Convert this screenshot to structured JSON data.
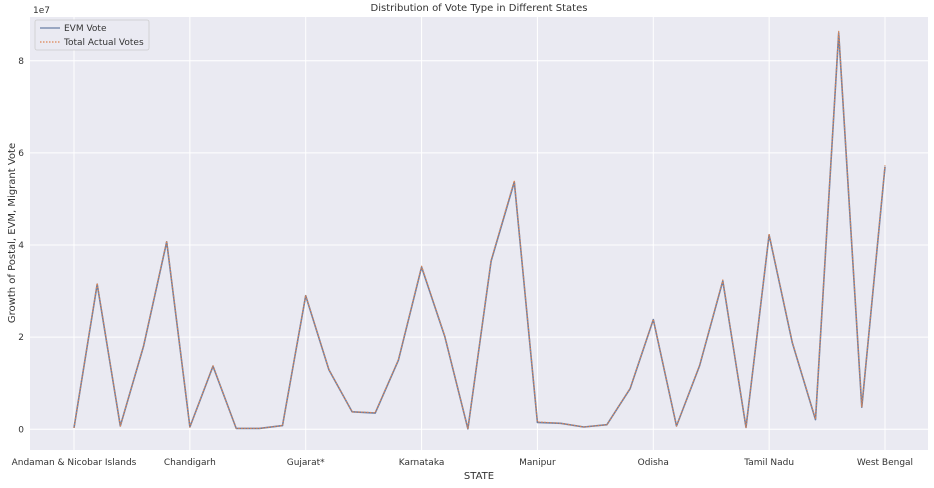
{
  "chart_data": {
    "type": "line",
    "title": "Distribution of Vote Type in Different States",
    "xlabel": "STATE",
    "ylabel": "Growth of Postal, EVM, Migrant Vote",
    "y_scale_label": "1e7",
    "ylim": [
      -0.45,
      8.95
    ],
    "grid": true,
    "legend_placement": "top-left",
    "background_color": "#eaeaf2",
    "grid_color": "#ffffff",
    "x_tick_labels": [
      {
        "index": 0,
        "label": "Andaman & Nicobar Islands"
      },
      {
        "index": 5,
        "label": "Chandigarh"
      },
      {
        "index": 10,
        "label": "Gujarat*"
      },
      {
        "index": 15,
        "label": "Karnataka"
      },
      {
        "index": 20,
        "label": "Manipur"
      },
      {
        "index": 25,
        "label": "Odisha"
      },
      {
        "index": 30,
        "label": "Tamil Nadu"
      },
      {
        "index": 35,
        "label": "West Bengal"
      }
    ],
    "y_ticks": [
      0,
      2,
      4,
      6,
      8
    ],
    "series": [
      {
        "name": "EVM Vote",
        "color": "#6a7fa6",
        "values": [
          0.03,
          3.15,
          0.07,
          1.8,
          4.07,
          0.05,
          1.37,
          0.02,
          0.02,
          0.08,
          2.9,
          1.29,
          0.38,
          0.35,
          1.5,
          3.52,
          2.02,
          0.01,
          3.65,
          5.37,
          0.15,
          0.13,
          0.05,
          0.1,
          0.88,
          2.38,
          0.07,
          1.38,
          3.22,
          0.04,
          4.22,
          1.88,
          0.21,
          8.6,
          0.48,
          5.7
        ]
      },
      {
        "name": "Total Actual Votes",
        "color": "#dd8452",
        "values": [
          0.03,
          3.17,
          0.07,
          1.81,
          4.09,
          0.05,
          1.38,
          0.02,
          0.02,
          0.08,
          2.91,
          1.3,
          0.38,
          0.36,
          1.51,
          3.54,
          2.03,
          0.01,
          3.67,
          5.4,
          0.16,
          0.13,
          0.05,
          0.1,
          0.89,
          2.39,
          0.07,
          1.39,
          3.24,
          0.04,
          4.24,
          1.89,
          0.22,
          8.64,
          0.49,
          5.73
        ]
      }
    ]
  }
}
